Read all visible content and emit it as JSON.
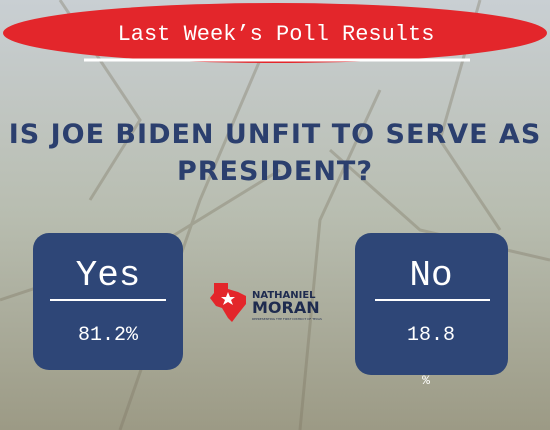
{
  "header": {
    "title": "Last Week’s Poll Results"
  },
  "question": {
    "lines": [
      "IS JOE BIDEN UNFIT TO SERVE AS",
      "PRESIDENT?"
    ]
  },
  "options": [
    {
      "label": "Yes",
      "result": "81.2%"
    },
    {
      "label": "No",
      "result": "18.8",
      "suffix": "%"
    }
  ],
  "logo": {
    "first_name": "NATHANIEL",
    "last_name": "MORAN",
    "tagline": "REPRESENTING THE FIRST DISTRICT OF TEXAS"
  }
}
